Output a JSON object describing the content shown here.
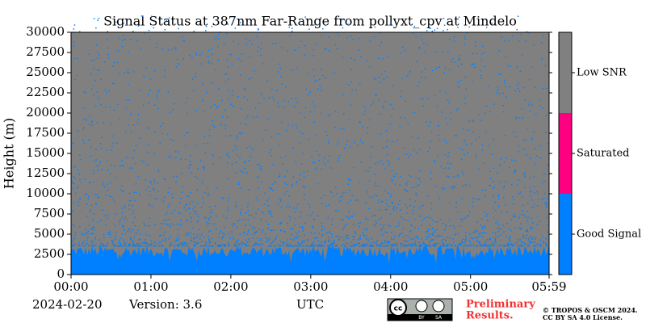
{
  "chart_data": {
    "type": "status-map",
    "title": "Signal Status at 387nm Far-Range from pollyxt_cpv at Mindelo",
    "y_label": "Height (m)",
    "ylim": [
      0,
      30000
    ],
    "yticks": [
      0,
      2500,
      5000,
      7500,
      10000,
      12500,
      15000,
      17500,
      20000,
      22500,
      25000,
      27500,
      30000
    ],
    "xlim": [
      0,
      359
    ],
    "xticks": [
      {
        "value": 0,
        "label": "00:00"
      },
      {
        "value": 60,
        "label": "01:00"
      },
      {
        "value": 120,
        "label": "02:00"
      },
      {
        "value": 180,
        "label": "03:00"
      },
      {
        "value": 240,
        "label": "04:00"
      },
      {
        "value": 300,
        "label": "05:00"
      },
      {
        "value": 359,
        "label": "05:59"
      }
    ],
    "x_label": "UTC",
    "status_classes": [
      {
        "name": "Good Signal",
        "color": "#0080ff"
      },
      {
        "name": "Saturated",
        "color": "#ff0080"
      },
      {
        "name": "Low SNR",
        "color": "#808080"
      }
    ],
    "date": "2024-02-20",
    "version": "Version: 3.6",
    "license_badge": [
      "cc",
      "BY",
      "SA"
    ],
    "preliminary": [
      "Preliminary",
      "Results."
    ],
    "copyright": [
      "© TROPOS & OSCM 2024.",
      "CC BY SA 4.0 License."
    ]
  }
}
